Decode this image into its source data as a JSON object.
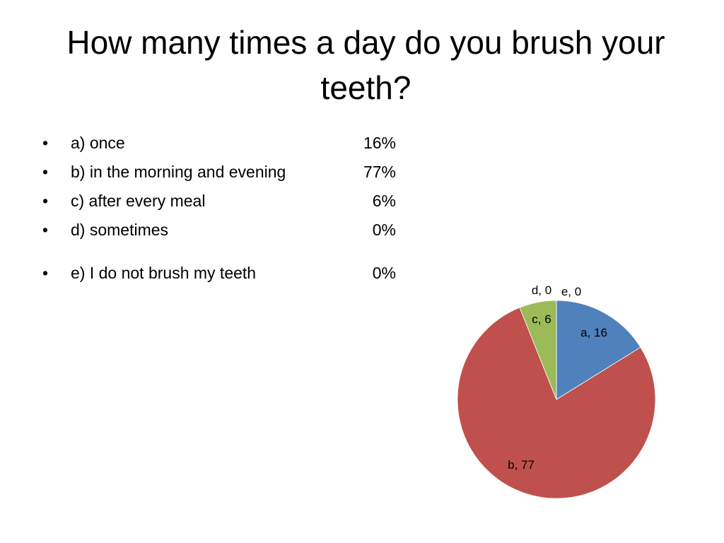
{
  "slide": {
    "title": "How many times a day do you brush your teeth?"
  },
  "answers": [
    {
      "label": "a) once",
      "percent": "16%"
    },
    {
      "label": "b) in the morning and evening",
      "percent": "77%"
    },
    {
      "label": "c) after every meal",
      "percent": "6%"
    },
    {
      "label": "d) sometimes",
      "percent": "0%"
    },
    {
      "label": "e) I do not brush my teeth",
      "percent": "0%"
    }
  ],
  "bullet_symbol": "•",
  "chart_data": {
    "type": "pie",
    "categories": [
      "a",
      "b",
      "c",
      "d",
      "e"
    ],
    "values": [
      16,
      77,
      6,
      0,
      0
    ],
    "data_labels": [
      "a, 16",
      "b, 77",
      "c, 6",
      "d, 0",
      "e, 0"
    ],
    "colors": [
      "#4F81BD",
      "#C0504D",
      "#9BBB59",
      "#8064A2",
      "#4BACC6"
    ],
    "start": "12 o'clock, clockwise",
    "legend": "none"
  }
}
